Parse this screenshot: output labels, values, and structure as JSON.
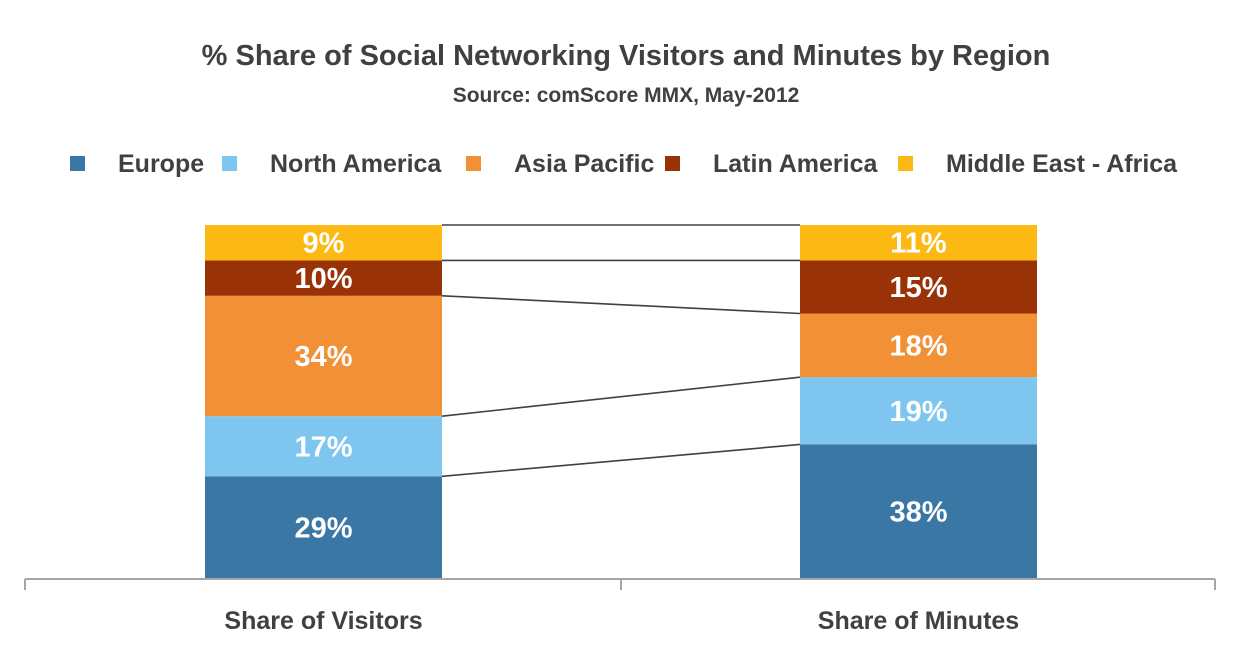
{
  "chart_data": {
    "type": "bar",
    "stacked": true,
    "percent_stacked": true,
    "title": "% Share of Social Networking Visitors and Minutes by Region",
    "subtitle": "Source: comScore MMX, May-2012",
    "categories": [
      "Share of Visitors",
      "Share of Minutes"
    ],
    "series": [
      {
        "name": "Europe",
        "values": [
          29,
          38
        ],
        "labels": [
          "29%",
          "38%"
        ],
        "color": "#3a77a5"
      },
      {
        "name": "North America",
        "values": [
          17,
          19
        ],
        "labels": [
          "17%",
          "19%"
        ],
        "color": "#7ec6ef"
      },
      {
        "name": "Asia Pacific",
        "values": [
          34,
          18
        ],
        "labels": [
          "34%",
          "18%"
        ],
        "color": "#f19035"
      },
      {
        "name": "Latin America",
        "values": [
          10,
          15
        ],
        "labels": [
          "10%",
          "15%"
        ],
        "color": "#9a3208"
      },
      {
        "name": "Middle East - Africa",
        "values": [
          9,
          11
        ],
        "labels": [
          "9%",
          "11%"
        ],
        "color": "#fdb913"
      }
    ],
    "legend_position": "top",
    "series_lines": true,
    "grid": false,
    "ylim": [
      0,
      100
    ]
  }
}
